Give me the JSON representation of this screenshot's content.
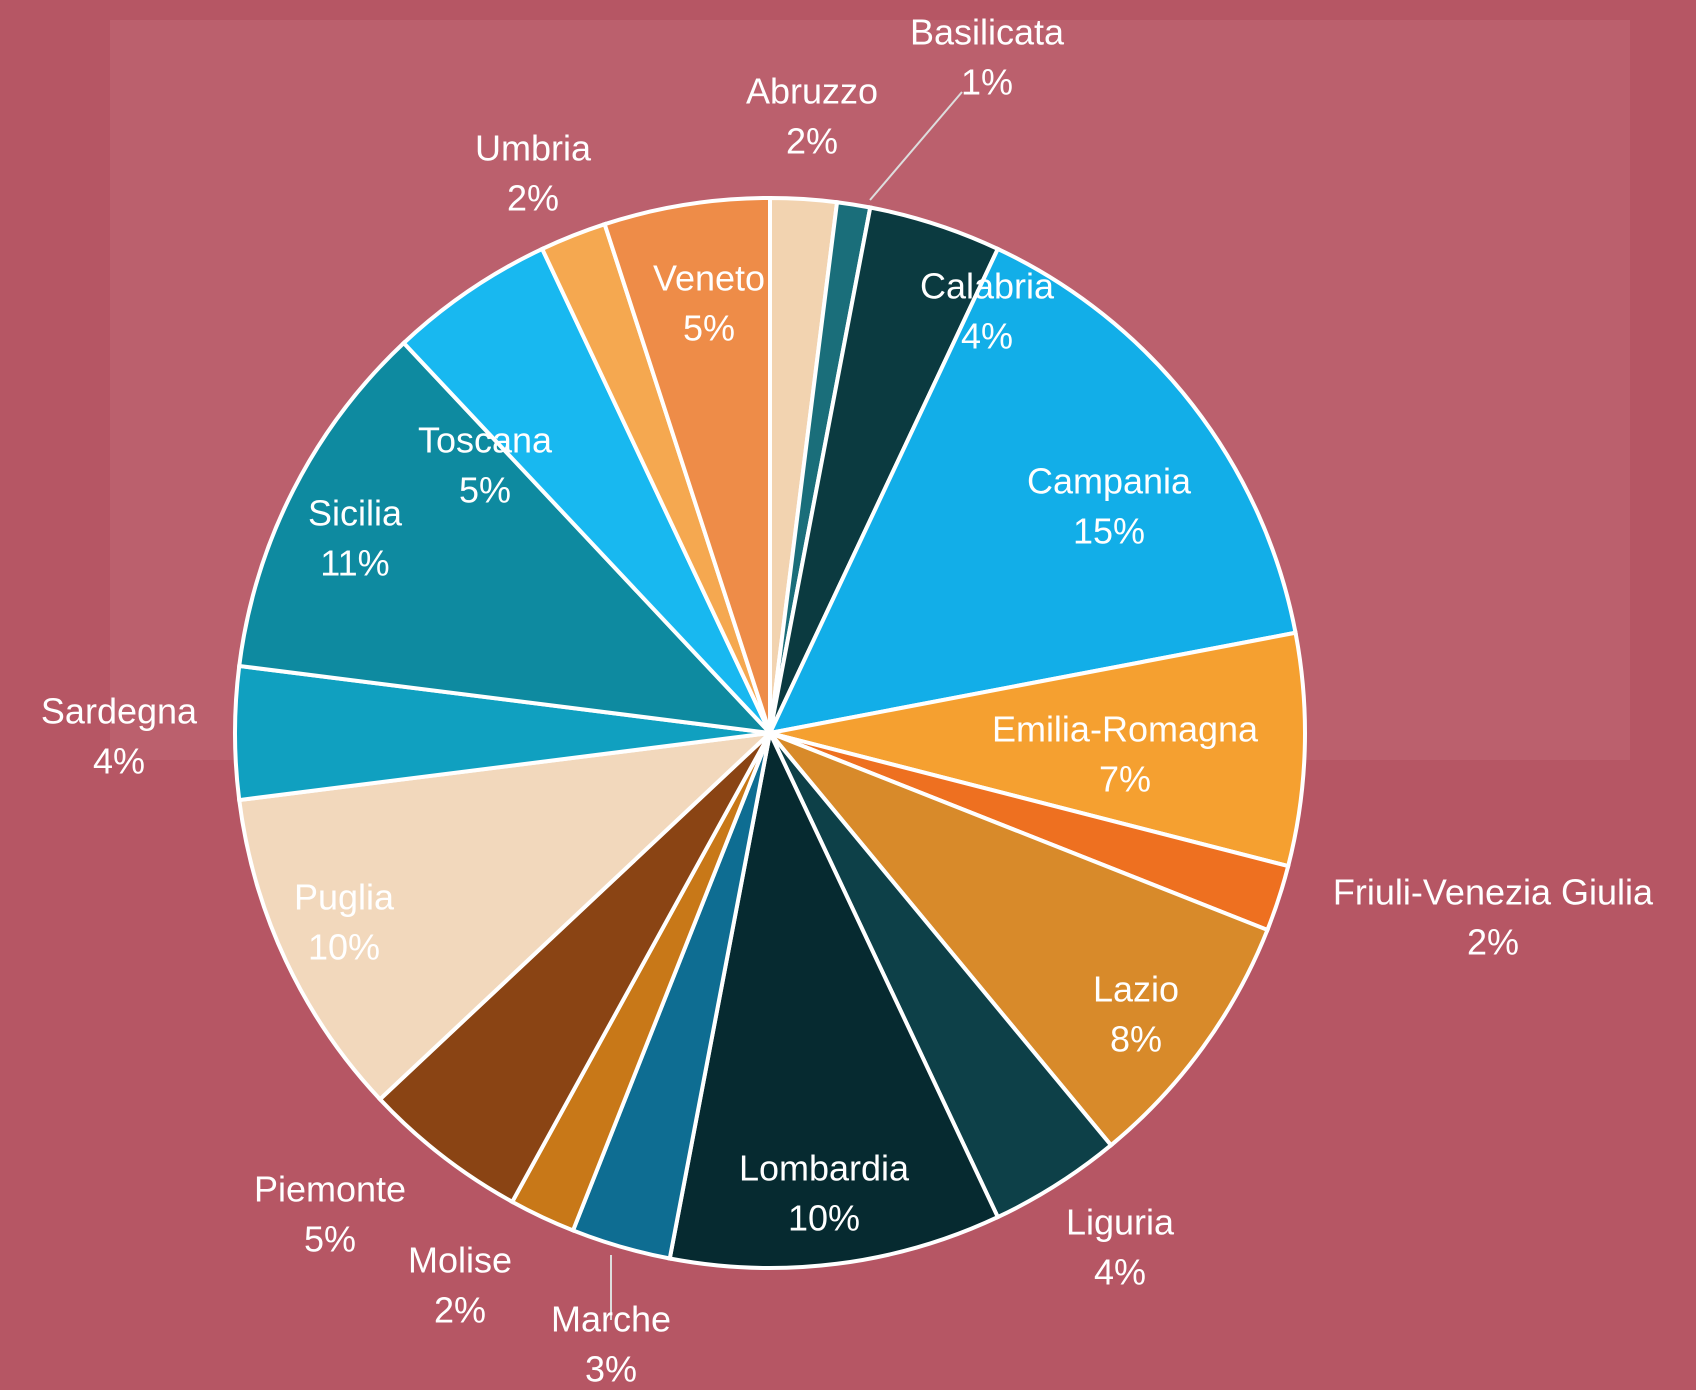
{
  "chart_data": {
    "type": "pie",
    "categories": [
      "Abruzzo",
      "Basilicata",
      "Calabria",
      "Campania",
      "Emilia-Romagna",
      "Friuli-Venezia Giulia",
      "Lazio",
      "Liguria",
      "Lombardia",
      "Marche",
      "Molise",
      "Piemonte",
      "Puglia",
      "Sardegna",
      "Sicilia",
      "Toscana",
      "Umbria",
      "Veneto"
    ],
    "values": [
      2,
      1,
      4,
      15,
      7,
      2,
      8,
      4,
      10,
      3,
      2,
      5,
      10,
      4,
      11,
      5,
      2,
      5
    ],
    "value_labels": [
      "2%",
      "1%",
      "4%",
      "15%",
      "7%",
      "2%",
      "8%",
      "4%",
      "10%",
      "3%",
      "2%",
      "5%",
      "10%",
      "4%",
      "11%",
      "5%",
      "2%",
      "5%"
    ],
    "colors": [
      "#f2d3b0",
      "#1a6e7a",
      "#0b3a40",
      "#12aee8",
      "#f5a030",
      "#ee7020",
      "#d88a2a",
      "#0d4048",
      "#062a30",
      "#0e6d92",
      "#c87818",
      "#8a4414",
      "#f2d8bc",
      "#10a0c0",
      "#0e8aa0",
      "#18b8f0",
      "#f5a850",
      "#ee8c48"
    ]
  }
}
